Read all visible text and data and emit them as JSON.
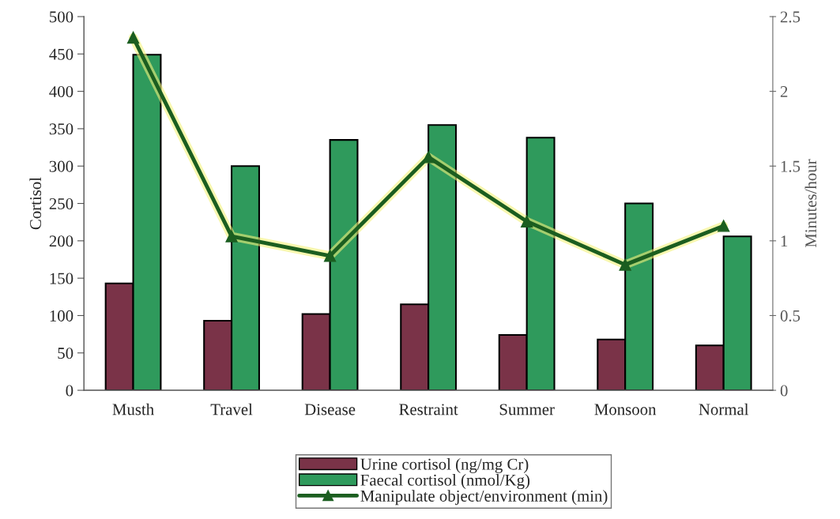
{
  "chart_data": {
    "type": "bar",
    "ylabel": "Cortisol",
    "y2label": "Minutes/hour",
    "categories": [
      "Musth",
      "Travel",
      "Disease",
      "Restraint",
      "Summer",
      "Monsoon",
      "Normal"
    ],
    "series": [
      {
        "name": "Urine cortisol (ng/mg Cr)",
        "color": "#7a3348",
        "values": [
          143,
          93,
          102,
          115,
          74,
          68,
          60
        ]
      },
      {
        "name": "Faecal cortisol (nmol/Kg)",
        "color": "#2f9a5c",
        "values": [
          449,
          300,
          335,
          355,
          338,
          250,
          206
        ]
      },
      {
        "name": "Manipulate object/environment (min)",
        "type": "line",
        "axis": "y2",
        "color": "#1b5e20",
        "marker": "triangle",
        "values": [
          2.36,
          1.03,
          0.9,
          1.56,
          1.13,
          0.84,
          1.1
        ]
      }
    ],
    "ylim": [
      0,
      500
    ],
    "yticks": [
      0,
      50,
      100,
      150,
      200,
      250,
      300,
      350,
      400,
      450,
      500
    ],
    "y2lim": [
      0,
      2.5
    ],
    "y2ticks": [
      0,
      0.5,
      1,
      1.5,
      2,
      2.5
    ],
    "grid": false,
    "legend": "bottom"
  }
}
